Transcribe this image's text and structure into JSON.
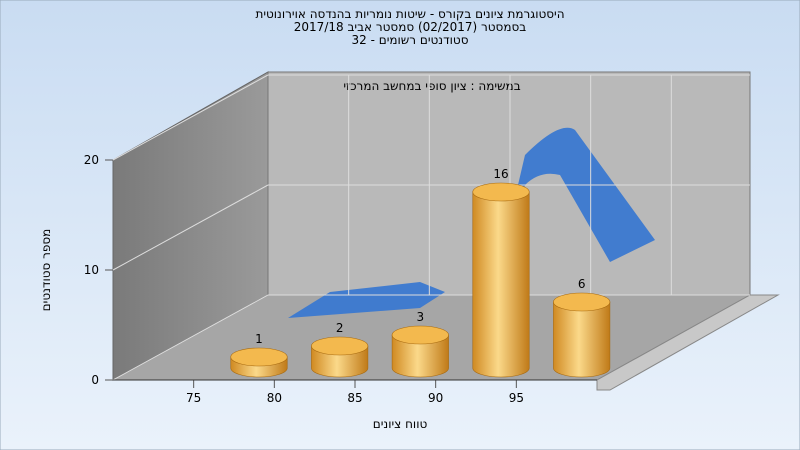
{
  "chart_data": {
    "type": "histogram",
    "title": [
      "היסטוגרמת ציונים בקורס - שיטות נומריות בהנדסה אוירונוטית",
      "בסמסטר  (02/2017)  סמסטר אביב 2017/18",
      "סטודנטים רשומים - 32"
    ],
    "annotation": "במשימה : ציון סופי במחשב המרכזי",
    "x_label": "טווח ציונים",
    "y_label": "מספר סטודנטים",
    "bins": [
      75,
      80,
      85,
      90,
      95,
      100
    ],
    "values": [
      1,
      2,
      3,
      16,
      6
    ],
    "color": "#e8a83e",
    "xlim": [
      70,
      100
    ],
    "xticks": [
      75,
      80,
      85,
      90,
      95
    ],
    "ylim": [
      0,
      20
    ],
    "yticks": [
      0,
      10,
      20
    ],
    "grid": true
  }
}
